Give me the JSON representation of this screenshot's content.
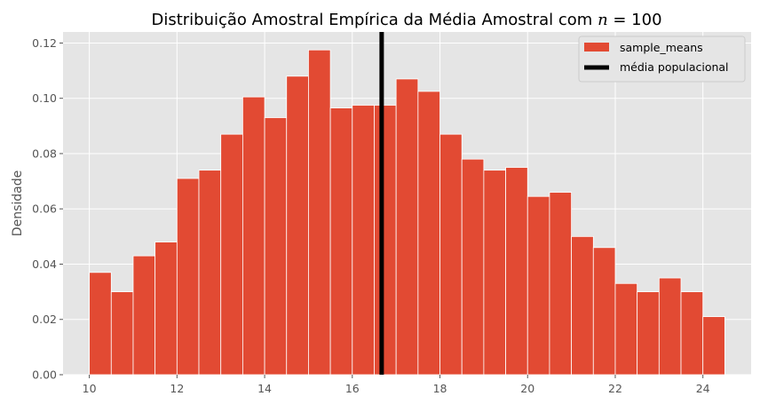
{
  "chart_data": {
    "type": "histogram",
    "title_text": "Distribuição Amostral Empírica da Média Amostral com ",
    "title_math_var": "n",
    "title_math_rest": " = 100",
    "xlabel": "",
    "ylabel": "Densidade",
    "xlim": [
      9.4,
      25.1
    ],
    "ylim": [
      0.0,
      0.124
    ],
    "x_ticks": [
      10,
      12,
      14,
      16,
      18,
      20,
      22,
      24
    ],
    "y_ticks": [
      0.0,
      0.02,
      0.04,
      0.06,
      0.08,
      0.1,
      0.12
    ],
    "y_tick_labels": [
      "0.00",
      "0.02",
      "0.04",
      "0.06",
      "0.08",
      "0.10",
      "0.12"
    ],
    "grid": true,
    "legend_position": "top-right",
    "series": [
      {
        "name": "sample_means",
        "color": "#E24A33",
        "bin_start": 10.0,
        "bin_width": 0.5,
        "values": [
          0.037,
          0.03,
          0.043,
          0.048,
          0.071,
          0.074,
          0.087,
          0.1005,
          0.093,
          0.108,
          0.1175,
          0.0965,
          0.0975,
          0.0975,
          0.107,
          0.1025,
          0.087,
          0.078,
          0.074,
          0.075,
          0.0645,
          0.066,
          0.05,
          0.046,
          0.033,
          0.03,
          0.035,
          0.03,
          0.021
        ]
      }
    ],
    "vline": {
      "name": "média populacional",
      "x": 16.67,
      "color": "#000000"
    }
  }
}
